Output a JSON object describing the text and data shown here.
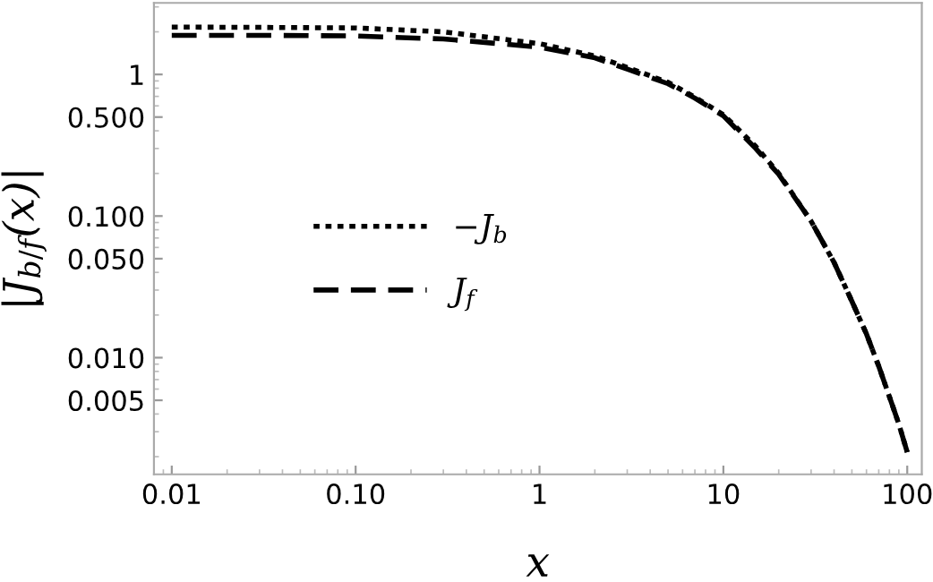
{
  "chart_data": {
    "type": "line",
    "xlabel": "x",
    "ylabel": "|J$_{b/f}$(x)|",
    "log": "xy",
    "x": [
      0.01,
      0.03,
      0.1,
      0.3,
      1,
      2,
      3,
      5,
      7,
      10,
      15,
      20,
      30,
      40,
      50,
      60,
      70,
      80,
      90,
      100
    ],
    "series": [
      {
        "name": "−J$_{b}$",
        "color": "#000000",
        "line_style": "dotted",
        "values": [
          2.16,
          2.15,
          2.13,
          2.0,
          1.65,
          1.35,
          1.12,
          0.88,
          0.69,
          0.52,
          0.31,
          0.2,
          0.092,
          0.047,
          0.025,
          0.0147,
          0.0087,
          0.0053,
          0.0034,
          0.00215
        ]
      },
      {
        "name": "J$_{f}$",
        "color": "#000000",
        "line_style": "dashed",
        "values": [
          1.89,
          1.89,
          1.87,
          1.78,
          1.56,
          1.31,
          1.09,
          0.86,
          0.68,
          0.51,
          0.3,
          0.197,
          0.092,
          0.047,
          0.025,
          0.0147,
          0.0087,
          0.0053,
          0.0034,
          0.00215
        ]
      }
    ],
    "xlim": [
      0.008,
      120
    ],
    "ylim": [
      0.0015,
      3.2
    ],
    "xticks": [
      {
        "value": 0.01,
        "label": "0.01"
      },
      {
        "value": 0.1,
        "label": "0.10"
      },
      1,
      10,
      100
    ],
    "yticks": [
      {
        "value": 0.005,
        "label": "0.005"
      },
      {
        "value": 0.01,
        "label": "0.010"
      },
      {
        "value": 0.05,
        "label": "0.050"
      },
      {
        "value": 0.1,
        "label": "0.100"
      },
      {
        "value": 0.5,
        "label": "0.500"
      },
      1
    ],
    "grid": false,
    "legend": "left"
  }
}
